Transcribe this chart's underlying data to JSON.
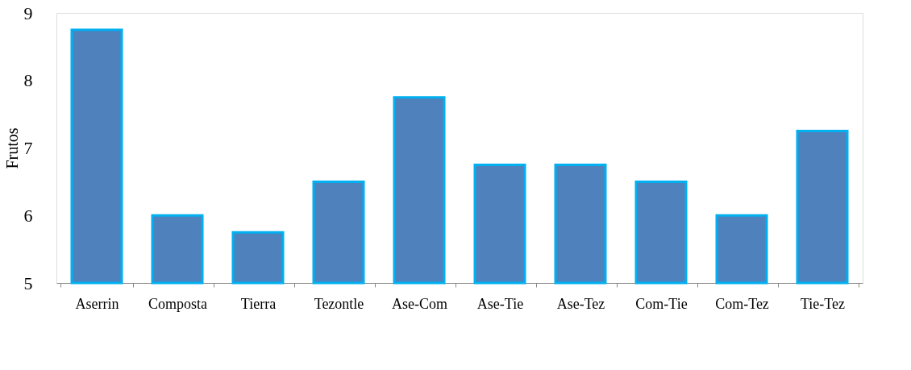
{
  "chart_data": {
    "type": "bar",
    "ylabel": "Frutos",
    "categories": [
      "Aserrin",
      "Composta",
      "Tierra",
      "Tezontle",
      "Ase-Com",
      "Ase-Tie",
      "Ase-Tez",
      "Com-Tie",
      "Com-Tez",
      "Tie-Tez"
    ],
    "values": [
      8.75,
      6.0,
      5.75,
      6.5,
      7.75,
      6.75,
      6.75,
      6.5,
      6.0,
      7.25
    ],
    "color": "#4f81bd",
    "ylim": [
      5,
      9
    ],
    "yticks": [
      5,
      6,
      7,
      8,
      9
    ],
    "grid": false
  }
}
